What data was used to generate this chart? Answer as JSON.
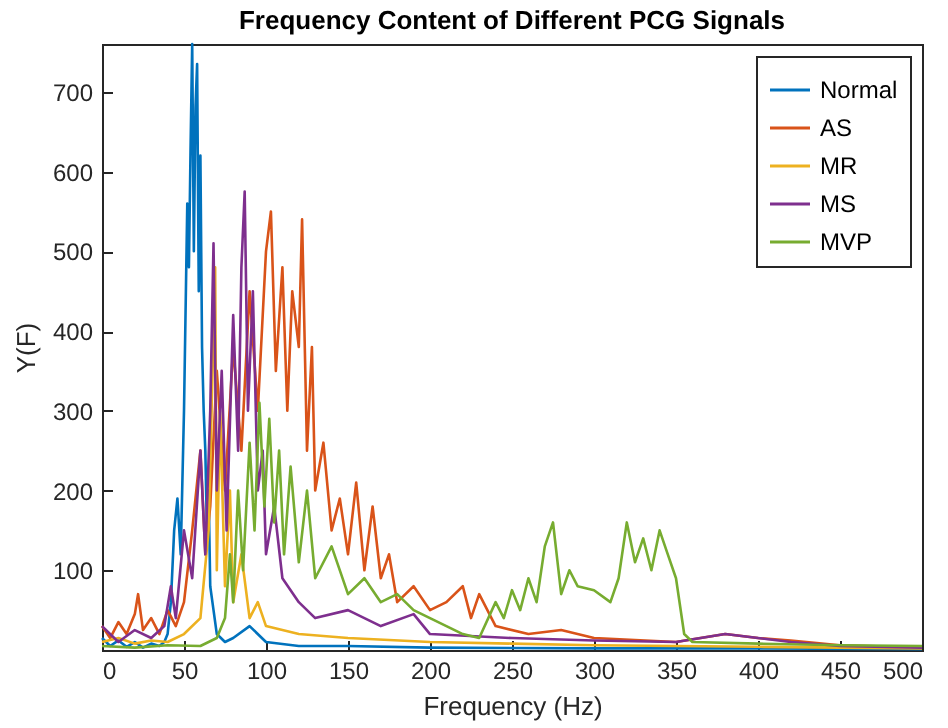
{
  "chart_data": {
    "type": "line",
    "title": "Frequency Content of Different PCG Signals",
    "xlabel": "Frequency (Hz)",
    "ylabel": "Y(F)",
    "xlim": [
      0,
      500
    ],
    "xticks": [
      0,
      50,
      100,
      150,
      200,
      250,
      300,
      350,
      400,
      450,
      500
    ],
    "ylim": [
      0,
      760
    ],
    "yticks": [
      100,
      200,
      300,
      400,
      500,
      600,
      700
    ],
    "grid": false,
    "legend": "top right",
    "marker": "none",
    "line_style": "solid",
    "series": [
      {
        "name": "Normal",
        "color": "#0072bd",
        "x": [
          0,
          5,
          10,
          15,
          20,
          25,
          30,
          35,
          38,
          40,
          42,
          44,
          46,
          48,
          50,
          52,
          53,
          54,
          55,
          56,
          57,
          58,
          59,
          60,
          61,
          62,
          63,
          64,
          65,
          66,
          68,
          70,
          75,
          80,
          90,
          100,
          120,
          150,
          200,
          300,
          400,
          500
        ],
        "values": [
          15,
          5,
          12,
          4,
          10,
          3,
          8,
          5,
          10,
          20,
          60,
          150,
          190,
          120,
          300,
          560,
          480,
          630,
          760,
          500,
          680,
          735,
          450,
          620,
          380,
          300,
          250,
          150,
          200,
          80,
          50,
          20,
          10,
          15,
          30,
          10,
          5,
          5,
          3,
          2,
          2,
          1
        ]
      },
      {
        "name": "AS",
        "color": "#d95319",
        "x": [
          0,
          5,
          10,
          15,
          20,
          22,
          25,
          30,
          35,
          40,
          45,
          50,
          55,
          60,
          63,
          66,
          70,
          75,
          80,
          85,
          90,
          95,
          100,
          103,
          106,
          110,
          113,
          116,
          120,
          122,
          125,
          128,
          130,
          135,
          140,
          145,
          150,
          155,
          160,
          165,
          170,
          175,
          180,
          190,
          200,
          210,
          220,
          225,
          230,
          240,
          260,
          280,
          300,
          350,
          380,
          400,
          420,
          450,
          500
        ],
        "values": [
          30,
          15,
          35,
          20,
          45,
          70,
          25,
          40,
          20,
          50,
          30,
          60,
          150,
          250,
          120,
          180,
          350,
          200,
          380,
          250,
          450,
          300,
          500,
          550,
          350,
          480,
          300,
          450,
          380,
          540,
          250,
          380,
          200,
          260,
          150,
          190,
          120,
          210,
          100,
          180,
          90,
          120,
          60,
          80,
          50,
          60,
          80,
          40,
          70,
          30,
          20,
          25,
          15,
          10,
          20,
          15,
          12,
          6,
          3
        ]
      },
      {
        "name": "MR",
        "color": "#edb120",
        "x": [
          0,
          10,
          20,
          30,
          40,
          50,
          60,
          65,
          69,
          70,
          72,
          75,
          78,
          80,
          85,
          90,
          95,
          100,
          120,
          150,
          200,
          250,
          300,
          350,
          400,
          450,
          500
        ],
        "values": [
          10,
          15,
          8,
          12,
          10,
          20,
          40,
          150,
          480,
          100,
          300,
          80,
          200,
          60,
          120,
          40,
          60,
          30,
          20,
          15,
          10,
          8,
          6,
          5,
          4,
          3,
          2
        ]
      },
      {
        "name": "MS",
        "color": "#7e2f8e",
        "x": [
          0,
          10,
          20,
          30,
          38,
          42,
          45,
          50,
          55,
          60,
          63,
          66,
          68,
          70,
          73,
          76,
          80,
          83,
          85,
          87,
          89,
          92,
          95,
          98,
          100,
          105,
          110,
          120,
          130,
          150,
          170,
          190,
          200,
          250,
          300,
          350,
          380,
          400,
          420,
          450,
          500
        ],
        "values": [
          30,
          10,
          25,
          15,
          30,
          80,
          40,
          150,
          90,
          250,
          120,
          300,
          510,
          200,
          350,
          150,
          420,
          250,
          480,
          575,
          300,
          450,
          200,
          250,
          120,
          180,
          90,
          60,
          40,
          50,
          30,
          45,
          20,
          15,
          12,
          10,
          20,
          15,
          10,
          5,
          3
        ]
      },
      {
        "name": "MVP",
        "color": "#77ac30",
        "x": [
          0,
          20,
          40,
          60,
          70,
          75,
          78,
          80,
          83,
          86,
          90,
          93,
          96,
          99,
          102,
          105,
          108,
          111,
          115,
          120,
          125,
          130,
          140,
          150,
          160,
          170,
          180,
          190,
          200,
          210,
          220,
          230,
          240,
          245,
          250,
          255,
          260,
          265,
          270,
          275,
          280,
          285,
          290,
          300,
          310,
          315,
          320,
          325,
          330,
          335,
          340,
          345,
          350,
          355,
          360,
          400,
          450,
          500
        ],
        "values": [
          5,
          3,
          6,
          5,
          15,
          40,
          120,
          60,
          200,
          100,
          260,
          150,
          310,
          180,
          290,
          160,
          250,
          120,
          230,
          110,
          200,
          90,
          130,
          70,
          90,
          60,
          70,
          50,
          40,
          30,
          20,
          15,
          60,
          40,
          75,
          50,
          90,
          60,
          130,
          160,
          70,
          100,
          80,
          75,
          60,
          90,
          160,
          110,
          140,
          100,
          150,
          120,
          90,
          20,
          10,
          8,
          6,
          5
        ]
      }
    ]
  }
}
